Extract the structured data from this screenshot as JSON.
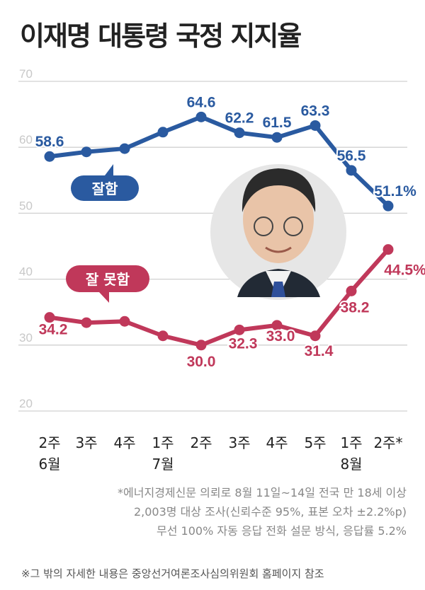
{
  "title": "이재명 대통령 국정 지지율",
  "chart_data": {
    "type": "line",
    "title": "이재명 대통령 국정 지지율",
    "categories": [
      [
        "2주",
        "6월"
      ],
      [
        "3주",
        ""
      ],
      [
        "4주",
        ""
      ],
      [
        "1주",
        "7월"
      ],
      [
        "2주",
        ""
      ],
      [
        "3주",
        ""
      ],
      [
        "4주",
        ""
      ],
      [
        "5주",
        ""
      ],
      [
        "1주",
        "8월"
      ],
      [
        "2주*",
        ""
      ]
    ],
    "ylim": [
      20,
      70
    ],
    "yticks": [
      "20",
      "30",
      "40",
      "50",
      "60",
      "70"
    ],
    "grid": true,
    "series": [
      {
        "name": "잘함",
        "color": "#2a5aa0",
        "values": [
          58.6,
          59.3,
          59.8,
          62.3,
          64.6,
          62.2,
          61.5,
          63.3,
          56.5,
          51.1
        ],
        "labels": [
          "58.6",
          "",
          "",
          "",
          "64.6",
          "62.2",
          "61.5",
          "63.3",
          "56.5",
          "51.1%"
        ]
      },
      {
        "name": "잘 못함",
        "color": "#c0385a",
        "values": [
          34.2,
          33.4,
          33.6,
          31.4,
          30.0,
          32.3,
          33.0,
          31.4,
          38.2,
          44.5
        ],
        "labels": [
          "34.2",
          "",
          "",
          "",
          "30.0",
          "32.3",
          "33.0",
          "31.4",
          "38.2",
          "44.5%"
        ]
      }
    ]
  },
  "notes": [
    "*에너지경제신문 의뢰로 8월 11일~14일 전국 만 18세 이상",
    "2,003명 대상 조사(신뢰수준 95%, 표본 오차 ±2.2%p)",
    "무선 100% 자동 응답 전화 설문 방식, 응답률 5.2%"
  ],
  "footer": "※그 밖의 자세한 내용은 중앙선거여론조사심의위원회 홈페이지 참조"
}
